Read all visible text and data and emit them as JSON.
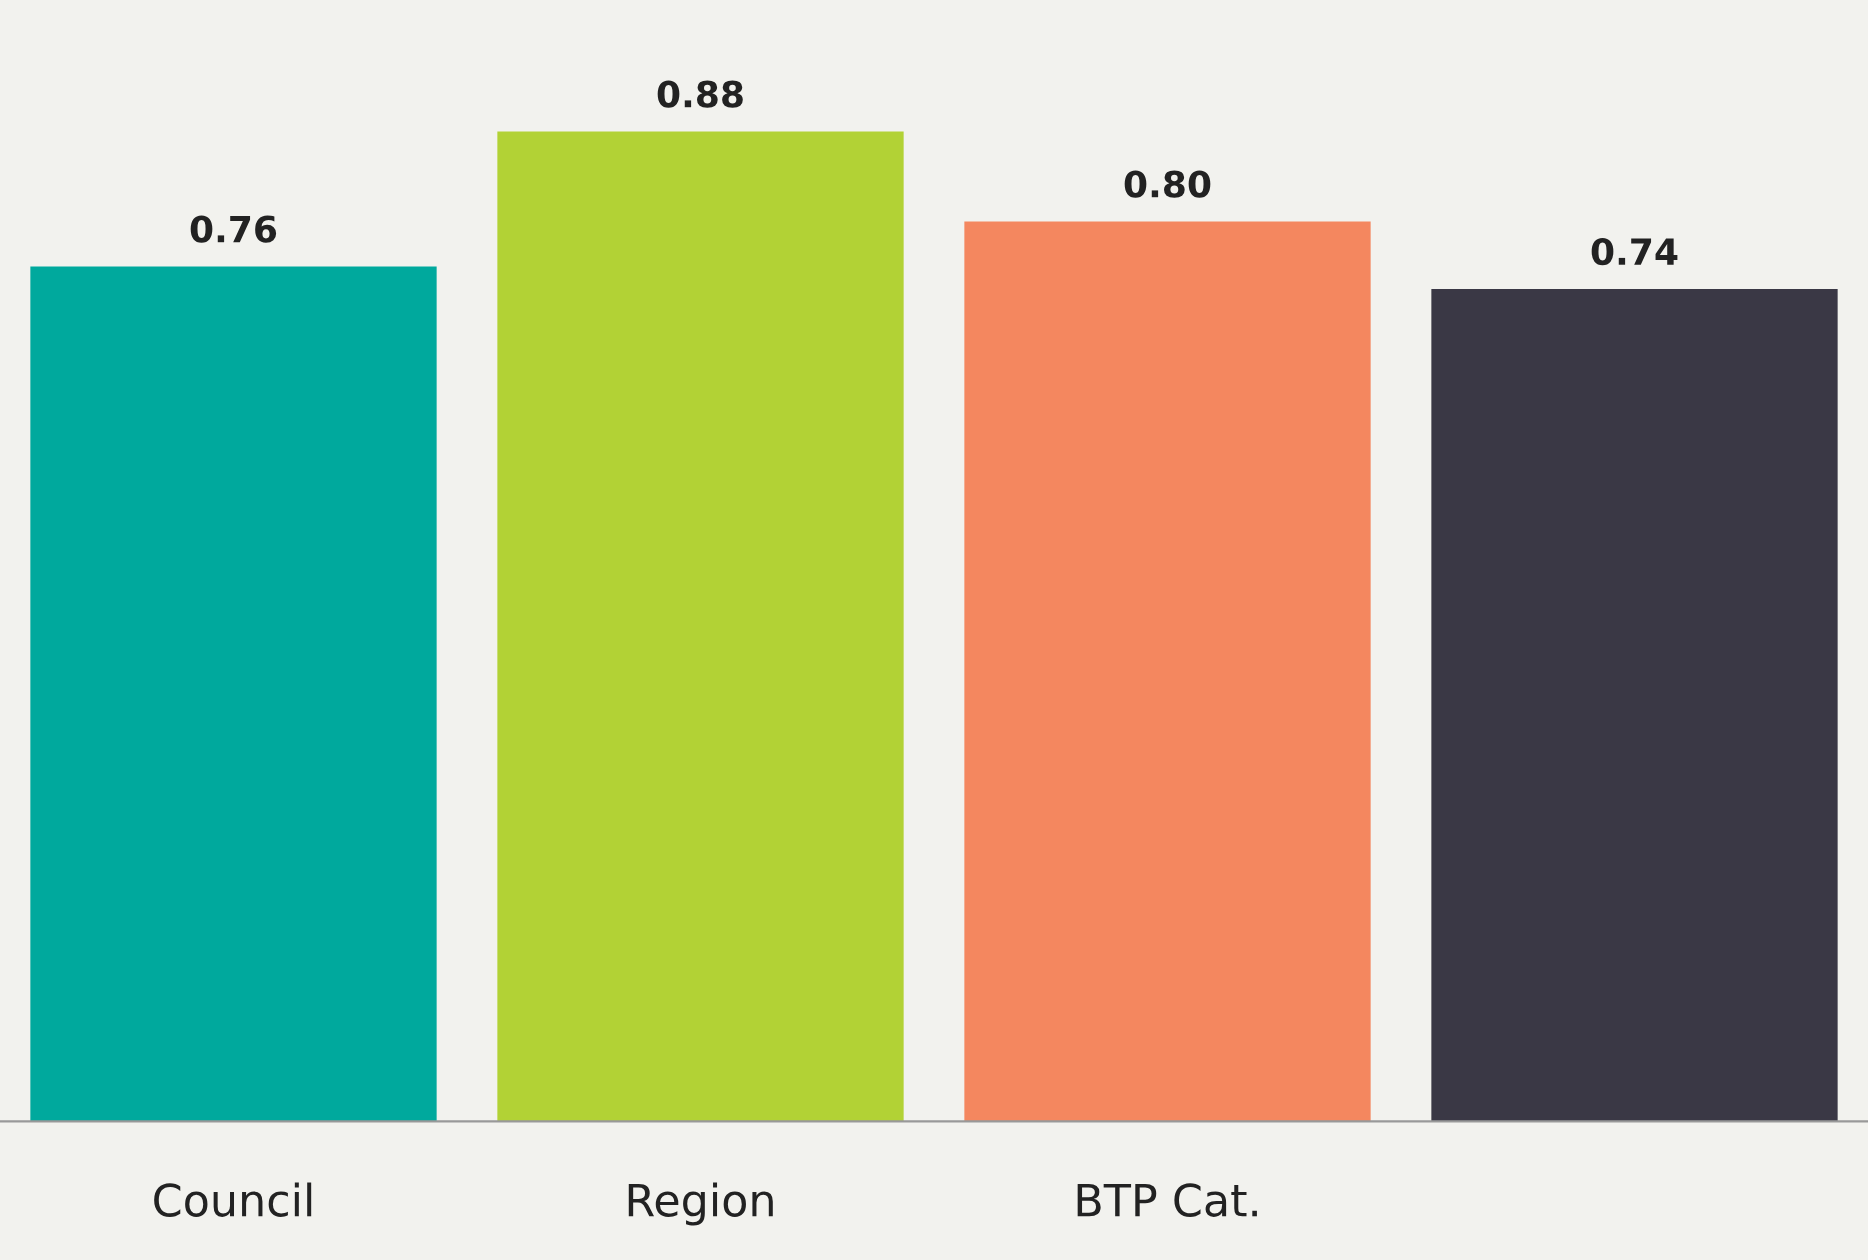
{
  "chart_data": {
    "type": "bar",
    "categories": [
      "Council",
      "Region",
      "BTP Cat.",
      null
    ],
    "values": [
      0.76,
      0.88,
      0.8,
      0.74
    ],
    "value_labels": [
      "0.76",
      "0.88",
      "0.80",
      "0.74"
    ],
    "colors": [
      "#00a99d",
      "#b2d235",
      "#f4875f",
      "#3a3845"
    ],
    "grid": false,
    "legend": false
  }
}
